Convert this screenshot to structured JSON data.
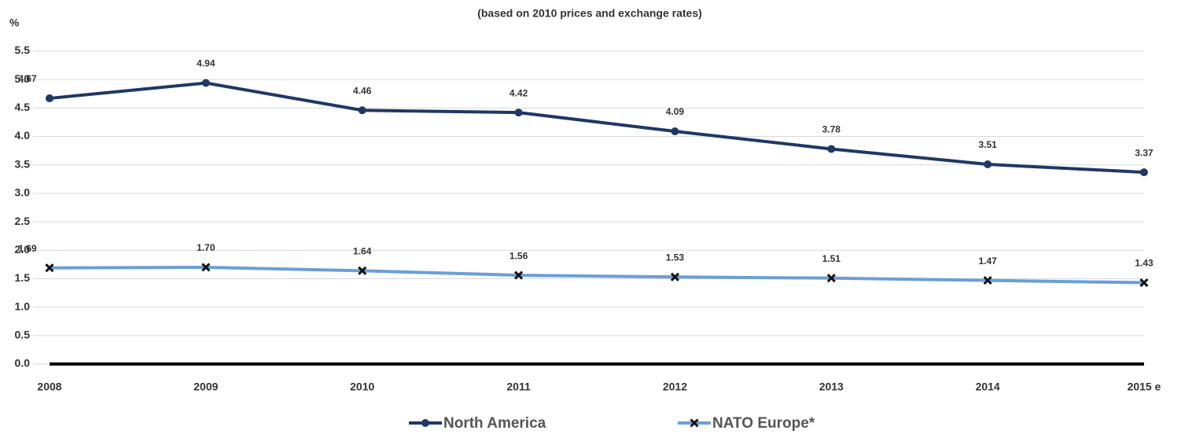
{
  "chart_data": {
    "type": "line",
    "title": "(based on 2010 prices and exchange rates)",
    "y_label": "%",
    "categories": [
      "2008",
      "2009",
      "2010",
      "2011",
      "2012",
      "2013",
      "2014",
      "2015 e"
    ],
    "series": [
      {
        "name": "North America",
        "color": "#1f3864",
        "marker": "circle",
        "values": [
          4.67,
          4.94,
          4.46,
          4.42,
          4.09,
          3.78,
          3.51,
          3.37
        ],
        "value_labels": [
          "4.67",
          "4.94",
          "4.46",
          "4.42",
          "4.09",
          "3.78",
          "3.51",
          "3.37"
        ]
      },
      {
        "name": "NATO Europe*",
        "color": "#6a9fd8",
        "marker": "x",
        "values": [
          1.69,
          1.7,
          1.64,
          1.56,
          1.53,
          1.51,
          1.47,
          1.43
        ],
        "value_labels": [
          "1.69",
          "1.70",
          "1.64",
          "1.56",
          "1.53",
          "1.51",
          "1.47",
          "1.43"
        ]
      }
    ],
    "ylim": [
      0,
      5.5
    ],
    "yticks": [
      {
        "value": 0,
        "label": "0.0"
      },
      {
        "value": 0.5,
        "label": "0.5"
      },
      {
        "value": 1,
        "label": "1.0"
      },
      {
        "value": 1.5,
        "label": "1.5"
      },
      {
        "value": 2,
        "label": "2.0"
      },
      {
        "value": 2.5,
        "label": "2.5"
      },
      {
        "value": 3,
        "label": "3.0"
      },
      {
        "value": 3.5,
        "label": "3.5"
      },
      {
        "value": 4,
        "label": "4.0"
      },
      {
        "value": 4.5,
        "label": "4.5"
      },
      {
        "value": 5,
        "label": "5.0"
      },
      {
        "value": 5.5,
        "label": "5.5"
      }
    ],
    "grid": true,
    "legend": "bottom"
  }
}
